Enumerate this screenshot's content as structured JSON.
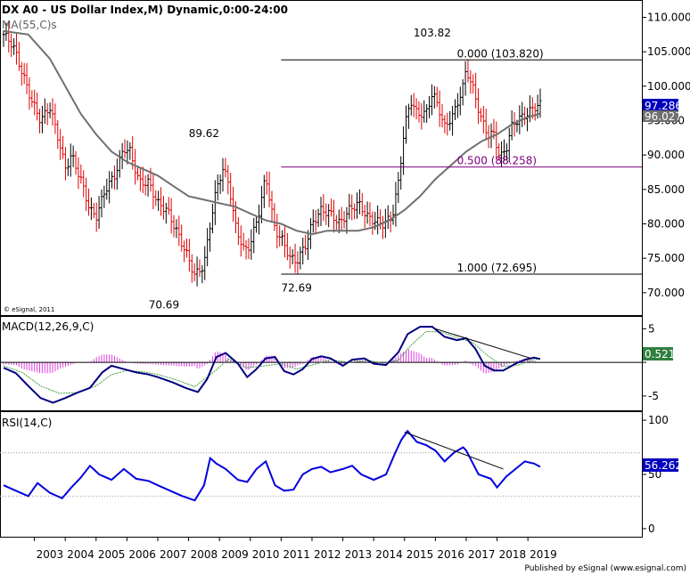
{
  "chart_data": {
    "type": "bar",
    "title": "DX A0 - US Dollar Index,M) Dynamic,0:00-24:00",
    "x_years": [
      "2003",
      "2004",
      "2005",
      "2006",
      "2007",
      "2008",
      "2009",
      "2010",
      "2011",
      "2012",
      "2013",
      "2014",
      "2015",
      "2016",
      "2017",
      "2018",
      "2019"
    ],
    "price_panel": {
      "ylim": [
        67,
        112
      ],
      "ticks": [
        "110.000",
        "105.000",
        "100.000",
        "95.000",
        "90.000",
        "85.000",
        "80.000",
        "75.000",
        "70.000"
      ],
      "tick_values": [
        110,
        105,
        100,
        95,
        90,
        85,
        80,
        75,
        70
      ],
      "ma_label": "MA(55,C)s",
      "watermark": "© eSignal, 2011",
      "current_close": "97.286",
      "ma_value": "96.027",
      "annotations": [
        {
          "text": "103.82",
          "t": 2015.9,
          "v": 107.2
        },
        {
          "text": "89.62",
          "t": 2008.5,
          "v": 92.6
        },
        {
          "text": "72.69",
          "t": 2011.5,
          "v": 70.2
        },
        {
          "text": "70.69",
          "t": 2007.2,
          "v": 67.7
        }
      ],
      "fibonacci": [
        {
          "label": "0.000 (103.820)",
          "value": 103.82,
          "color": "#000000",
          "t_start": 2011.0
        },
        {
          "label": "0.500 (88.258)",
          "value": 88.258,
          "color": "#800080",
          "t_start": 2011.0
        },
        {
          "label": "1.000 (72.695)",
          "value": 72.695,
          "color": "#000000",
          "t_start": 2011.0
        }
      ],
      "price_keypoints": [
        [
          2002.0,
          107.5
        ],
        [
          2002.3,
          106
        ],
        [
          2002.6,
          102
        ],
        [
          2002.9,
          98
        ],
        [
          2003.2,
          95
        ],
        [
          2003.5,
          97
        ],
        [
          2003.8,
          92
        ],
        [
          2004.0,
          88
        ],
        [
          2004.2,
          90
        ],
        [
          2004.5,
          86.5
        ],
        [
          2004.8,
          82
        ],
        [
          2005.0,
          81
        ],
        [
          2005.3,
          85
        ],
        [
          2005.6,
          87
        ],
        [
          2005.9,
          91
        ],
        [
          2006.1,
          90.5
        ],
        [
          2006.4,
          86
        ],
        [
          2006.7,
          86
        ],
        [
          2007.0,
          83
        ],
        [
          2007.3,
          82
        ],
        [
          2007.6,
          79
        ],
        [
          2007.9,
          76
        ],
        [
          2008.2,
          72.5
        ],
        [
          2008.5,
          74
        ],
        [
          2008.7,
          80
        ],
        [
          2008.9,
          85
        ],
        [
          2009.1,
          88
        ],
        [
          2009.3,
          86
        ],
        [
          2009.5,
          80
        ],
        [
          2009.8,
          76
        ],
        [
          2010.0,
          77
        ],
        [
          2010.3,
          82
        ],
        [
          2010.5,
          87
        ],
        [
          2010.8,
          79
        ],
        [
          2011.0,
          78
        ],
        [
          2011.3,
          75
        ],
        [
          2011.5,
          74.5
        ],
        [
          2011.8,
          77
        ],
        [
          2012.0,
          80
        ],
        [
          2012.3,
          82
        ],
        [
          2012.6,
          81.5
        ],
        [
          2012.9,
          80
        ],
        [
          2013.2,
          82
        ],
        [
          2013.5,
          83
        ],
        [
          2013.8,
          81
        ],
        [
          2014.0,
          80.5
        ],
        [
          2014.3,
          80
        ],
        [
          2014.6,
          81
        ],
        [
          2014.8,
          86
        ],
        [
          2015.0,
          94
        ],
        [
          2015.2,
          98
        ],
        [
          2015.4,
          96
        ],
        [
          2015.7,
          96
        ],
        [
          2015.9,
          99
        ],
        [
          2016.1,
          97
        ],
        [
          2016.3,
          94
        ],
        [
          2016.6,
          96
        ],
        [
          2016.9,
          100
        ],
        [
          2017.0,
          102.5
        ],
        [
          2017.2,
          100
        ],
        [
          2017.5,
          95
        ],
        [
          2017.7,
          93
        ],
        [
          2017.9,
          93
        ],
        [
          2018.1,
          89.5
        ],
        [
          2018.3,
          91
        ],
        [
          2018.5,
          94.5
        ],
        [
          2018.8,
          95.5
        ],
        [
          2019.0,
          96
        ],
        [
          2019.2,
          97
        ],
        [
          2019.4,
          97.3
        ]
      ],
      "ma_keypoints": [
        [
          2002.0,
          108
        ],
        [
          2002.8,
          107.5
        ],
        [
          2003.5,
          104
        ],
        [
          2004.0,
          100
        ],
        [
          2004.5,
          96
        ],
        [
          2005.0,
          93
        ],
        [
          2005.5,
          90.5
        ],
        [
          2006.0,
          89
        ],
        [
          2006.5,
          88
        ],
        [
          2007.0,
          87
        ],
        [
          2007.5,
          85.5
        ],
        [
          2008.0,
          84
        ],
        [
          2008.5,
          83.5
        ],
        [
          2009.0,
          83
        ],
        [
          2009.5,
          82.5
        ],
        [
          2010.0,
          81.5
        ],
        [
          2010.5,
          80.5
        ],
        [
          2011.0,
          80
        ],
        [
          2011.5,
          79
        ],
        [
          2012.0,
          78.5
        ],
        [
          2012.5,
          79
        ],
        [
          2013.0,
          79
        ],
        [
          2013.5,
          79
        ],
        [
          2014.0,
          79.5
        ],
        [
          2014.5,
          80.5
        ],
        [
          2015.0,
          82
        ],
        [
          2015.5,
          84
        ],
        [
          2016.0,
          86.5
        ],
        [
          2016.5,
          88.5
        ],
        [
          2017.0,
          90.5
        ],
        [
          2017.5,
          92
        ],
        [
          2018.0,
          93
        ],
        [
          2018.5,
          94.5
        ],
        [
          2019.0,
          95.5
        ],
        [
          2019.4,
          96.0
        ]
      ]
    },
    "macd_panel": {
      "label": "MACD(12,26,9,C)",
      "ylim": [
        -7,
        6.5
      ],
      "tick_labels": [
        "5",
        "0",
        "-5"
      ],
      "tick_values": [
        5,
        0,
        -5
      ],
      "current_value": "0.521",
      "macd_keypoints": [
        [
          2002.0,
          -0.8
        ],
        [
          2002.4,
          -1.6
        ],
        [
          2002.8,
          -3.5
        ],
        [
          2003.2,
          -5.3
        ],
        [
          2003.6,
          -6.0
        ],
        [
          2004.0,
          -5.3
        ],
        [
          2004.4,
          -4.5
        ],
        [
          2004.8,
          -3.8
        ],
        [
          2005.2,
          -1.5
        ],
        [
          2005.5,
          -0.5
        ],
        [
          2005.9,
          -1.0
        ],
        [
          2006.3,
          -1.5
        ],
        [
          2006.7,
          -1.8
        ],
        [
          2007.0,
          -2.2
        ],
        [
          2007.5,
          -3.0
        ],
        [
          2007.9,
          -3.8
        ],
        [
          2008.3,
          -4.4
        ],
        [
          2008.6,
          -2.5
        ],
        [
          2008.9,
          0.8
        ],
        [
          2009.2,
          1.4
        ],
        [
          2009.6,
          -0.2
        ],
        [
          2009.9,
          -2.2
        ],
        [
          2010.2,
          -1.0
        ],
        [
          2010.5,
          0.6
        ],
        [
          2010.8,
          0.8
        ],
        [
          2011.1,
          -1.3
        ],
        [
          2011.4,
          -1.8
        ],
        [
          2011.7,
          -1.0
        ],
        [
          2012.0,
          0.5
        ],
        [
          2012.3,
          0.9
        ],
        [
          2012.6,
          0.6
        ],
        [
          2013.0,
          -0.5
        ],
        [
          2013.3,
          0.4
        ],
        [
          2013.7,
          0.6
        ],
        [
          2014.0,
          -0.2
        ],
        [
          2014.4,
          -0.4
        ],
        [
          2014.8,
          1.5
        ],
        [
          2015.1,
          4.2
        ],
        [
          2015.5,
          5.3
        ],
        [
          2015.9,
          5.3
        ],
        [
          2016.3,
          3.8
        ],
        [
          2016.7,
          3.3
        ],
        [
          2017.0,
          3.6
        ],
        [
          2017.3,
          2.0
        ],
        [
          2017.6,
          -0.5
        ],
        [
          2017.9,
          -1.2
        ],
        [
          2018.2,
          -1.2
        ],
        [
          2018.6,
          -0.2
        ],
        [
          2018.9,
          0.4
        ],
        [
          2019.2,
          0.7
        ],
        [
          2019.4,
          0.5
        ]
      ],
      "signal_keypoints": [
        [
          2002.0,
          -0.5
        ],
        [
          2002.6,
          -1.5
        ],
        [
          2003.2,
          -3.5
        ],
        [
          2003.8,
          -4.6
        ],
        [
          2004.4,
          -4.5
        ],
        [
          2005.0,
          -3.5
        ],
        [
          2005.5,
          -1.8
        ],
        [
          2006.0,
          -1.2
        ],
        [
          2006.5,
          -1.4
        ],
        [
          2007.0,
          -1.8
        ],
        [
          2007.6,
          -2.6
        ],
        [
          2008.2,
          -3.6
        ],
        [
          2008.8,
          -1.5
        ],
        [
          2009.3,
          0.5
        ],
        [
          2009.9,
          -0.8
        ],
        [
          2010.5,
          -0.5
        ],
        [
          2011.0,
          -0.2
        ],
        [
          2011.5,
          -1.0
        ],
        [
          2012.0,
          -0.4
        ],
        [
          2012.6,
          0.4
        ],
        [
          2013.2,
          0.0
        ],
        [
          2013.8,
          0.3
        ],
        [
          2014.3,
          -0.1
        ],
        [
          2014.8,
          0.3
        ],
        [
          2015.2,
          2.5
        ],
        [
          2015.7,
          4.6
        ],
        [
          2016.2,
          4.5
        ],
        [
          2016.8,
          3.5
        ],
        [
          2017.2,
          3.0
        ],
        [
          2017.7,
          1.0
        ],
        [
          2018.2,
          -0.6
        ],
        [
          2018.7,
          -0.4
        ],
        [
          2019.1,
          0.3
        ],
        [
          2019.4,
          0.6
        ]
      ],
      "trendline": [
        [
          2016.0,
          5.0
        ],
        [
          2019.1,
          0.6
        ]
      ]
    },
    "rsi_panel": {
      "label": "RSI(14,C)",
      "ylim": [
        -5,
        105
      ],
      "tick_labels": [
        "100",
        "50",
        "0"
      ],
      "tick_values": [
        100,
        50,
        0
      ],
      "guide_levels": [
        70,
        30
      ],
      "current_value": "56.262",
      "rsi_keypoints": [
        [
          2002.0,
          40
        ],
        [
          2002.4,
          35
        ],
        [
          2002.8,
          30
        ],
        [
          2003.1,
          42
        ],
        [
          2003.5,
          33
        ],
        [
          2003.9,
          28
        ],
        [
          2004.2,
          38
        ],
        [
          2004.5,
          47
        ],
        [
          2004.8,
          58
        ],
        [
          2005.1,
          50
        ],
        [
          2005.5,
          45
        ],
        [
          2005.9,
          55
        ],
        [
          2006.3,
          46
        ],
        [
          2006.7,
          44
        ],
        [
          2007.0,
          40
        ],
        [
          2007.4,
          35
        ],
        [
          2007.8,
          30
        ],
        [
          2008.2,
          26
        ],
        [
          2008.5,
          40
        ],
        [
          2008.7,
          65
        ],
        [
          2008.9,
          60
        ],
        [
          2009.2,
          55
        ],
        [
          2009.6,
          45
        ],
        [
          2009.9,
          43
        ],
        [
          2010.2,
          55
        ],
        [
          2010.5,
          62
        ],
        [
          2010.8,
          40
        ],
        [
          2011.1,
          35
        ],
        [
          2011.4,
          36
        ],
        [
          2011.7,
          50
        ],
        [
          2012.0,
          55
        ],
        [
          2012.3,
          57
        ],
        [
          2012.6,
          52
        ],
        [
          2013.0,
          55
        ],
        [
          2013.3,
          58
        ],
        [
          2013.6,
          50
        ],
        [
          2014.0,
          45
        ],
        [
          2014.4,
          50
        ],
        [
          2014.7,
          70
        ],
        [
          2014.9,
          82
        ],
        [
          2015.1,
          90
        ],
        [
          2015.4,
          80
        ],
        [
          2015.7,
          77
        ],
        [
          2016.0,
          72
        ],
        [
          2016.3,
          62
        ],
        [
          2016.6,
          70
        ],
        [
          2016.9,
          75
        ],
        [
          2017.0,
          72
        ],
        [
          2017.4,
          50
        ],
        [
          2017.8,
          46
        ],
        [
          2018.0,
          38
        ],
        [
          2018.3,
          48
        ],
        [
          2018.6,
          55
        ],
        [
          2018.9,
          62
        ],
        [
          2019.2,
          60
        ],
        [
          2019.4,
          57
        ]
      ],
      "trendline": [
        [
          2015.0,
          89
        ],
        [
          2018.2,
          55
        ]
      ]
    },
    "footer": "Published by eSignal (www.esignal.com)",
    "colors": {
      "up_bar": "#000000",
      "down_bar": "#e00000",
      "ma": "#707070",
      "macd_line": "#000080",
      "signal_line": "#40a040",
      "histogram": "#e040e0",
      "rsi_line": "#0000e0",
      "fib_mid": "#800080",
      "value_box": "#0000c0",
      "macd_value_box": "#308040"
    }
  }
}
